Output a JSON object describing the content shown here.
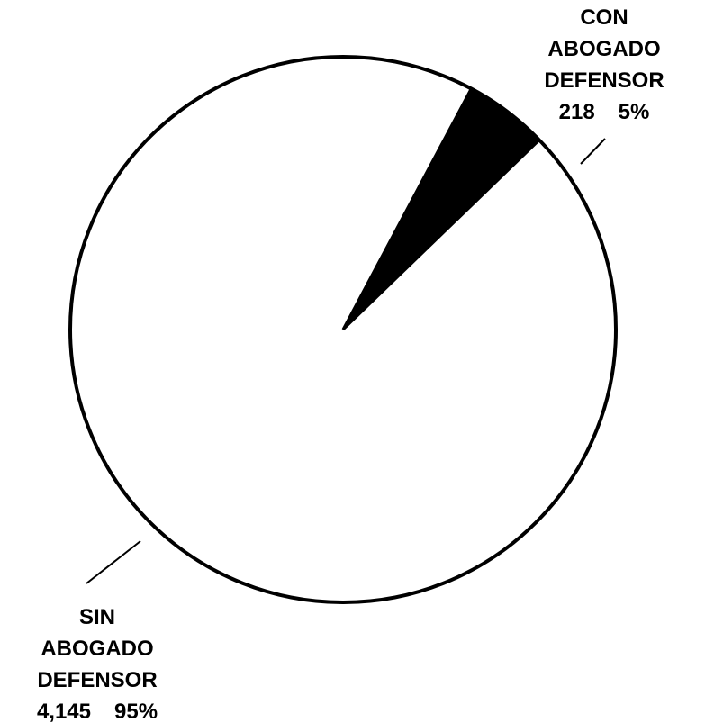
{
  "chart_data": {
    "type": "pie",
    "title": "",
    "slices": [
      {
        "label_lines": [
          "CON",
          "ABOGADO",
          "DEFENSOR"
        ],
        "count": "218",
        "percent": "5%",
        "value": 218,
        "fill": "#000000"
      },
      {
        "label_lines": [
          "SIN",
          "ABOGADO",
          "DEFENSOR"
        ],
        "count": "4,145",
        "percent": "95%",
        "value": 4145,
        "fill": "#ffffff"
      }
    ],
    "outline_color": "#000000",
    "label_placement": {
      "slice_0": "top-right",
      "slice_1": "bottom-left"
    }
  }
}
